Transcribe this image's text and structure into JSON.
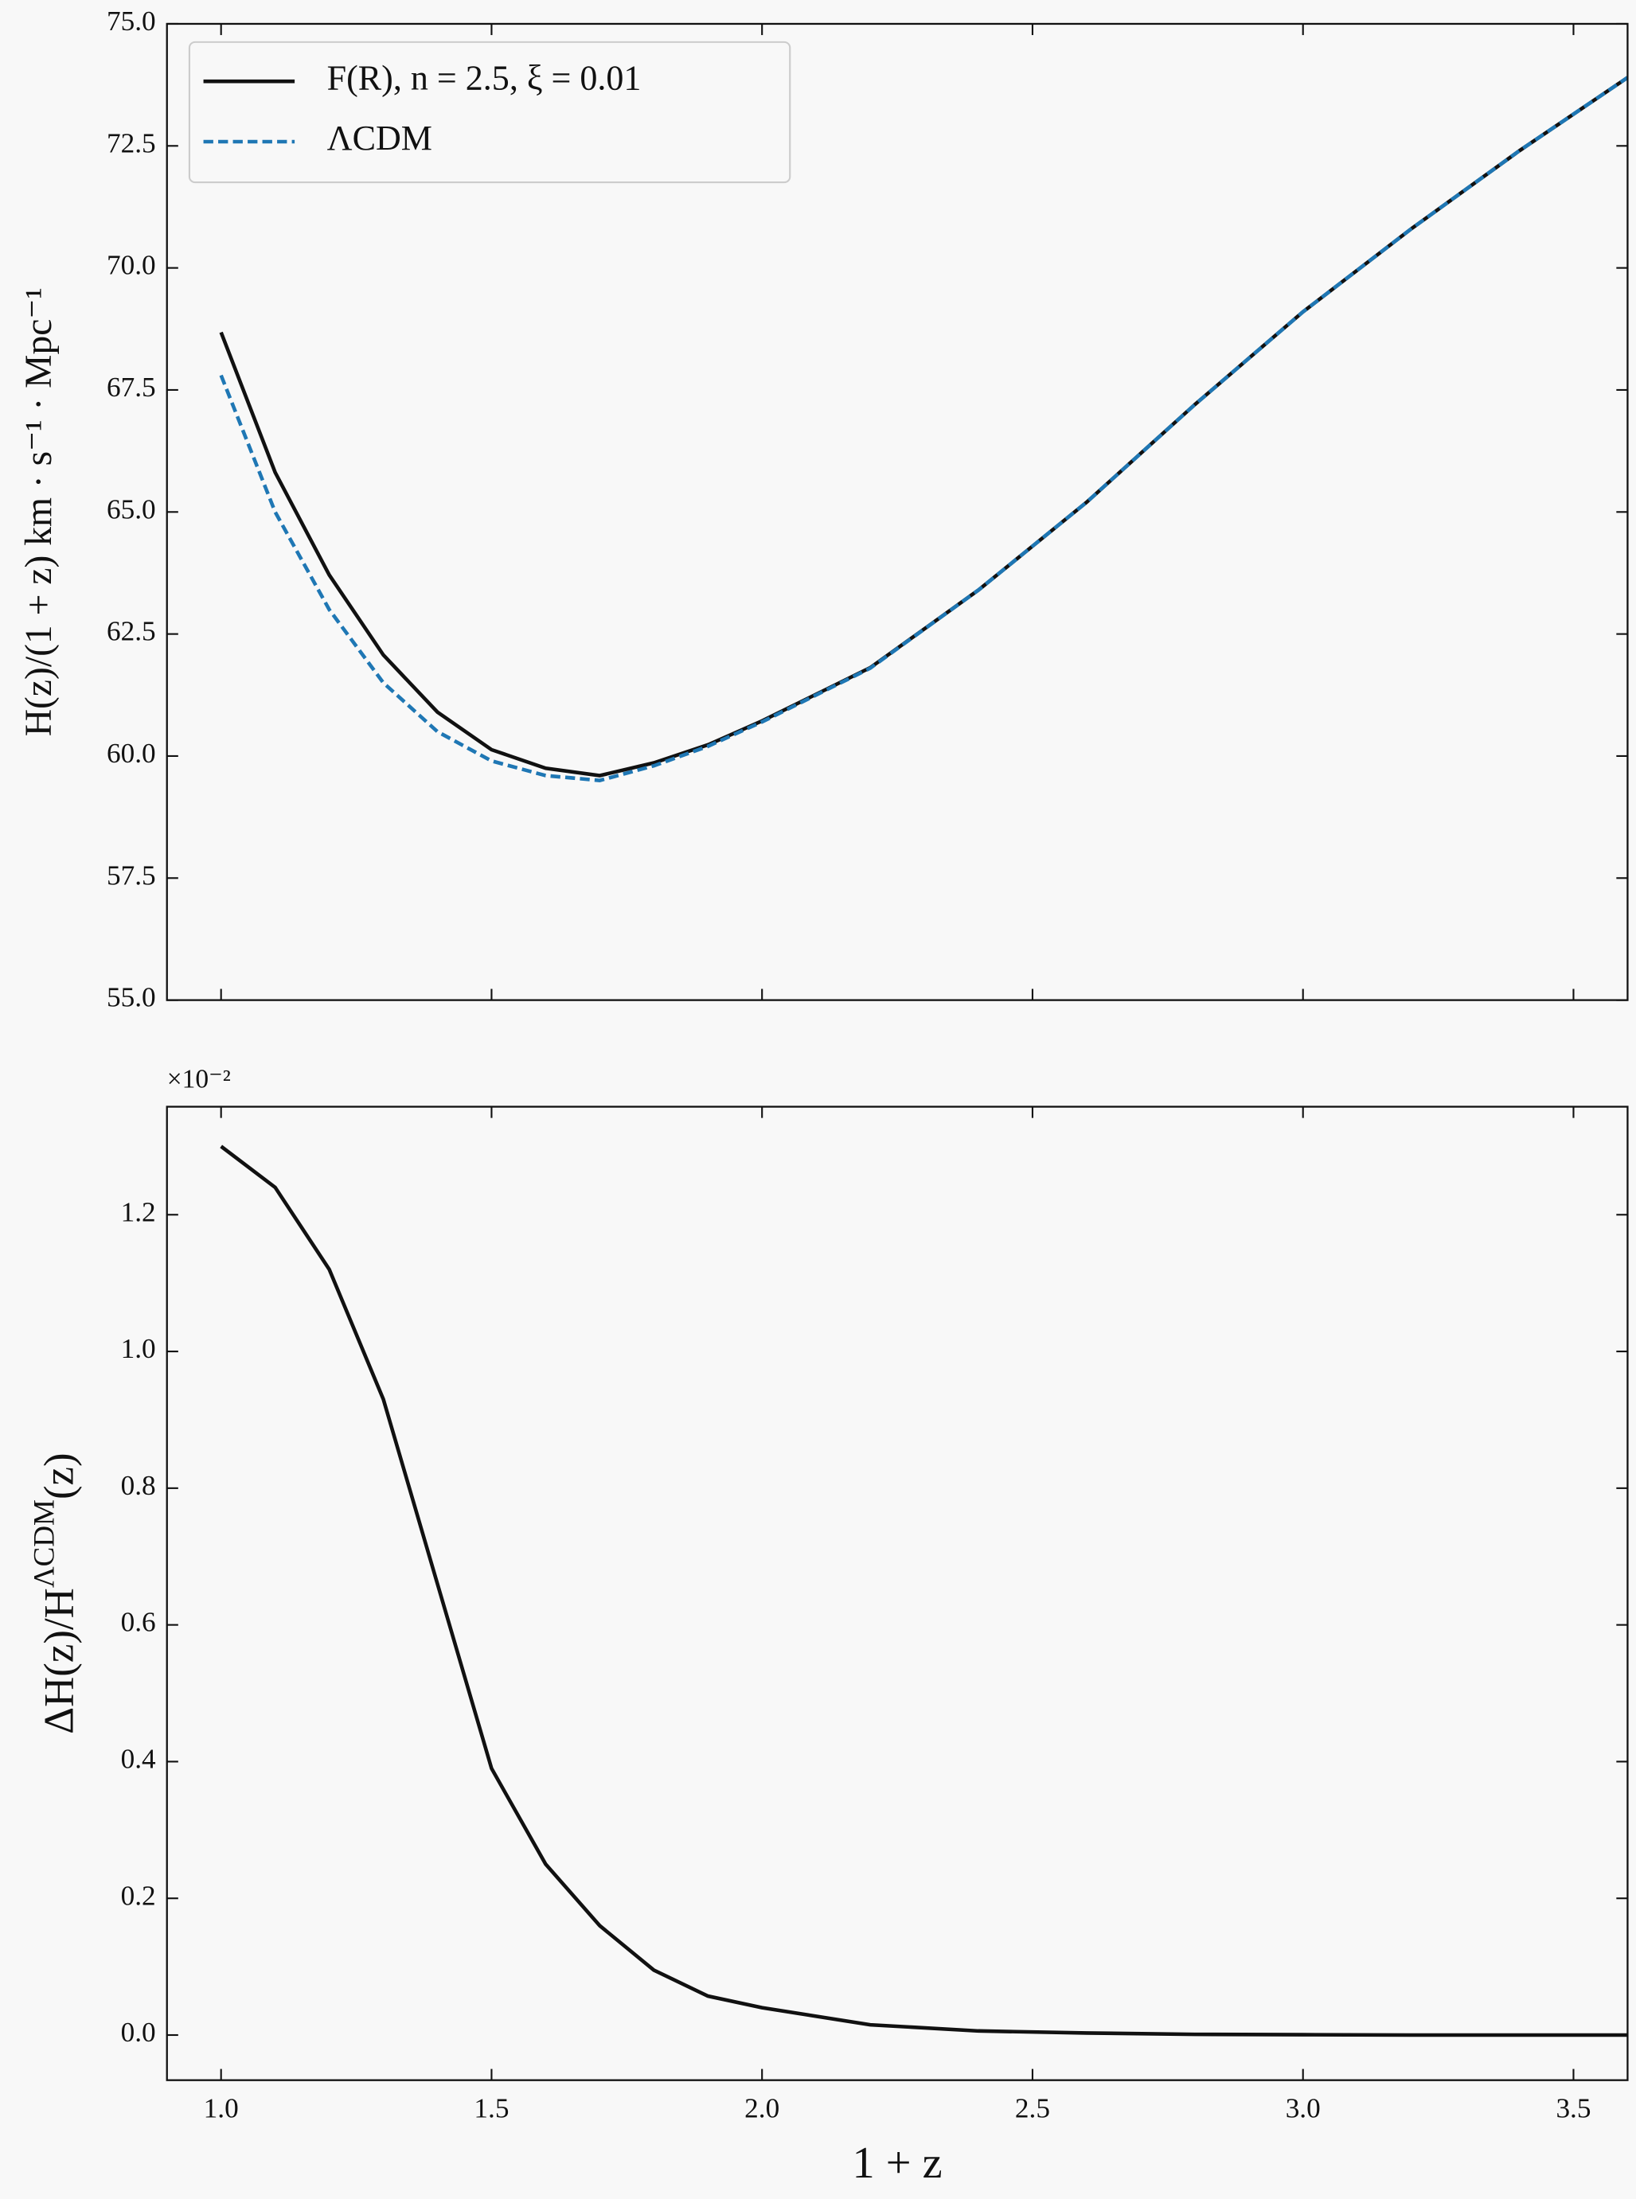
{
  "chart_data": [
    {
      "type": "line",
      "ylabel": "H(z)/(1 + z) km · s⁻¹ · Mpc⁻¹",
      "x": [
        1.0,
        1.1,
        1.2,
        1.3,
        1.4,
        1.5,
        1.6,
        1.7,
        1.8,
        1.9,
        2.0,
        2.2,
        2.4,
        2.5,
        2.6,
        2.8,
        3.0,
        3.2,
        3.4,
        3.6
      ],
      "series": [
        {
          "name": "F(R), n = 2.5, ξ = 0.01",
          "color": "#111111",
          "dash": false,
          "values": [
            68.68,
            65.81,
            63.71,
            62.07,
            60.9,
            60.13,
            59.75,
            59.6,
            59.86,
            60.23,
            60.72,
            61.81,
            63.4,
            64.3,
            65.2,
            67.2,
            69.1,
            70.8,
            72.4,
            73.9
          ]
        },
        {
          "name": "ΛCDM",
          "color": "#1f77b4",
          "dash": true,
          "values": [
            67.8,
            65.0,
            63.0,
            61.5,
            60.5,
            59.9,
            59.6,
            59.5,
            59.8,
            60.2,
            60.7,
            61.8,
            63.4,
            64.3,
            65.2,
            67.2,
            69.1,
            70.8,
            72.4,
            73.9
          ]
        }
      ],
      "xlim": [
        0.9,
        3.6
      ],
      "ylim": [
        55,
        75
      ],
      "yticks": [
        {
          "value": 55,
          "label": "55.0"
        },
        57.5,
        {
          "value": 60,
          "label": "60.0"
        },
        62.5,
        {
          "value": 65,
          "label": "65.0"
        },
        67.5,
        {
          "value": 70,
          "label": "70.0"
        },
        72.5,
        {
          "value": 75,
          "label": "75.0"
        }
      ],
      "legend": "upper left"
    },
    {
      "type": "line",
      "ylabel": [
        "ΔH(z)/H",
        "ΛCDM",
        "(z)"
      ],
      "xlabel": "1 + z",
      "offset_text": "×10⁻²",
      "x": [
        1.0,
        1.1,
        1.2,
        1.3,
        1.4,
        1.5,
        1.6,
        1.7,
        1.8,
        1.9,
        2.0,
        2.2,
        2.4,
        2.6,
        2.8,
        3.0,
        3.2,
        3.4,
        3.6
      ],
      "series": [
        {
          "color": "#111111",
          "dash": false,
          "values": [
            1.3,
            1.24,
            1.12,
            0.93,
            0.66,
            0.39,
            0.25,
            0.16,
            0.095,
            0.057,
            0.04,
            0.015,
            0.006,
            0.003,
            0.001,
            0.0005,
            0,
            0,
            0
          ]
        }
      ],
      "xlim": [
        0.9,
        3.6
      ],
      "xticks": [
        {
          "value": 1,
          "label": "1.0"
        },
        1.5,
        {
          "value": 2,
          "label": "2.0"
        },
        2.5,
        {
          "value": 3,
          "label": "3.0"
        },
        3.5
      ],
      "ylim": [
        -0.066,
        1.358
      ],
      "yticks": [
        {
          "value": 0,
          "label": "0.0"
        },
        0.2,
        0.4,
        0.6,
        0.8,
        {
          "value": 1,
          "label": "1.0"
        },
        1.2
      ]
    }
  ]
}
